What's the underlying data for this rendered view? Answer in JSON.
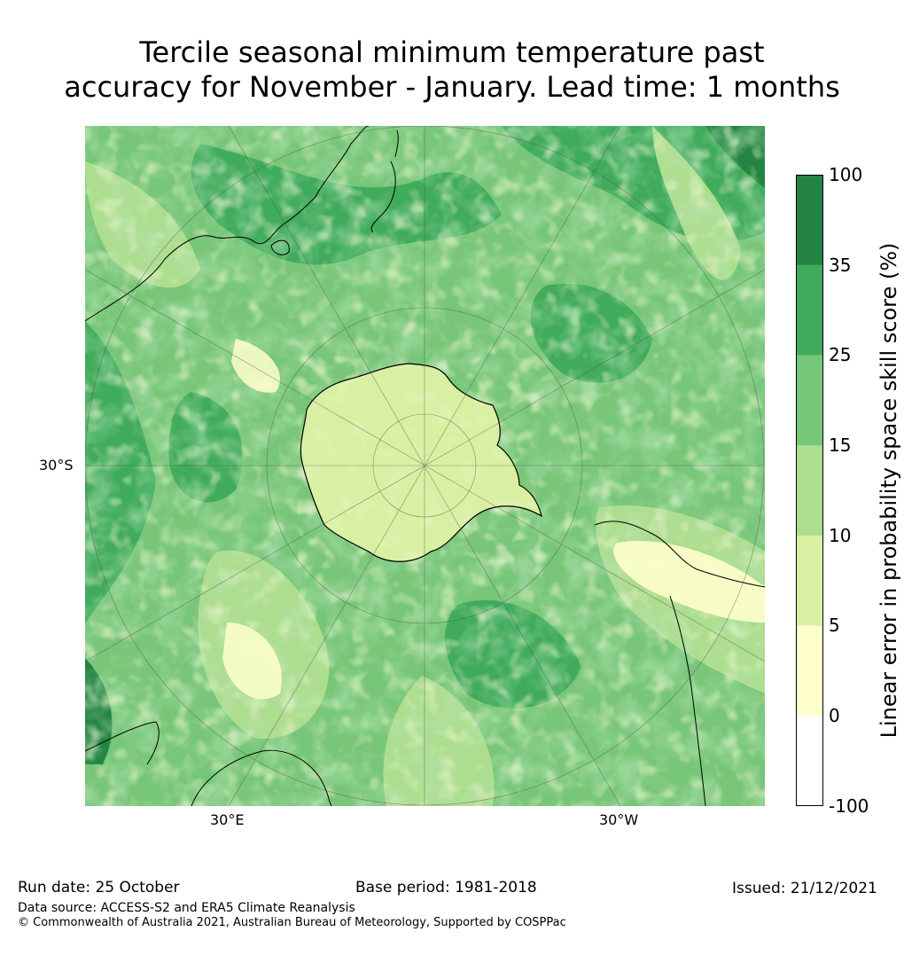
{
  "title_line1": "Tercile seasonal minimum temperature past",
  "title_line2": "accuracy for November - January. Lead time: 1 months",
  "axes": {
    "lat_label": "30°S",
    "lon_label_east": "30°E",
    "lon_label_west": "30°W"
  },
  "colorbar": {
    "label": "Linear error in probability space skill score (%)",
    "ticks": [
      "100",
      "35",
      "25",
      "15",
      "10",
      "5",
      "0",
      "-100"
    ],
    "colors": [
      "#238443",
      "#41ab5d",
      "#78c679",
      "#addd8e",
      "#d9f0a3",
      "#ffffcc",
      "#ffffff"
    ]
  },
  "footer": {
    "run_date": "Run date: 25 October",
    "base_period": "Base period: 1981-2018",
    "issued": "Issued: 21/12/2021",
    "data_source": "Data source: ACCESS-S2 and ERA5 Climate Reanalysis",
    "copyright": "© Commonwealth of Australia 2021, Australian Bureau of Meteorology, Supported by COSPPac"
  }
}
